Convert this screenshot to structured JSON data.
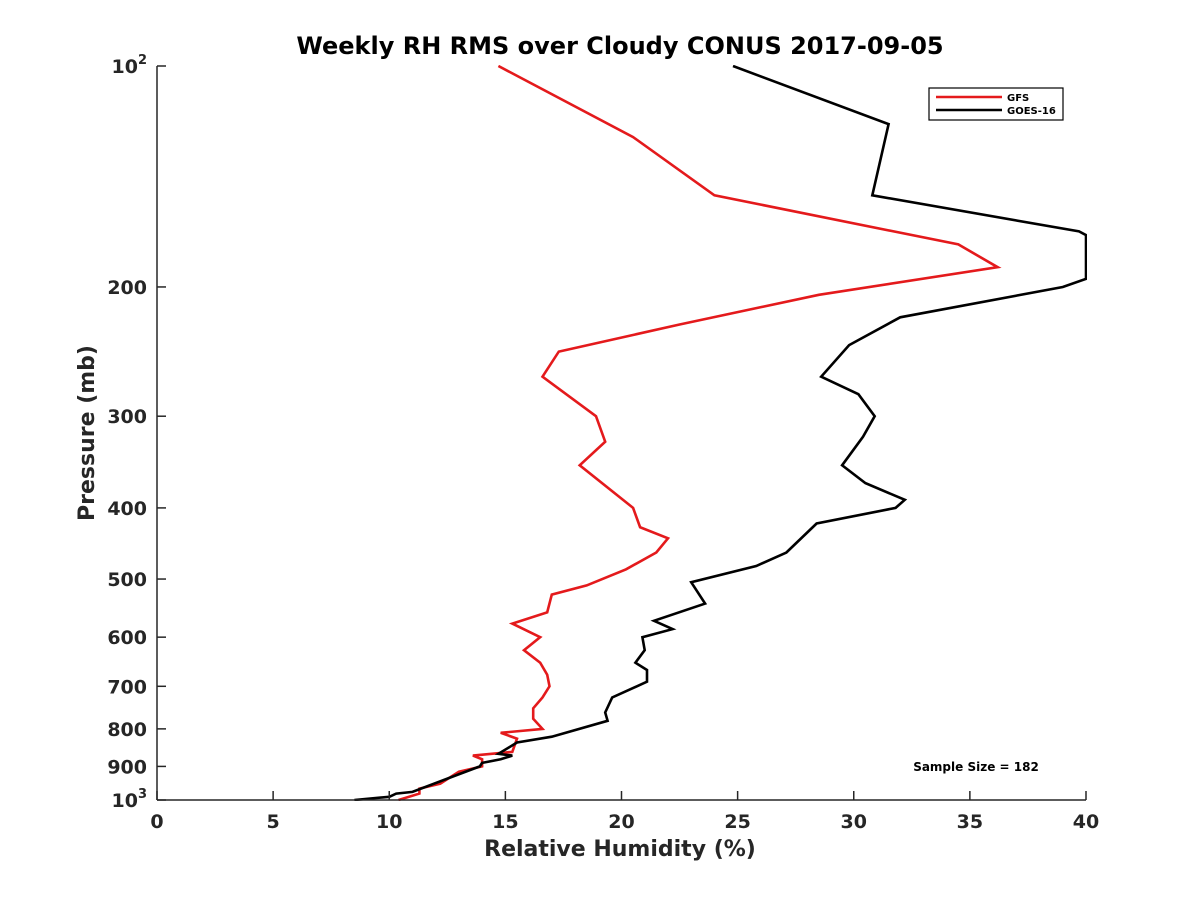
{
  "chart_data": {
    "type": "line",
    "title": "Weekly RH RMS over Cloudy CONUS 2017-09-05",
    "xlabel": "Relative Humidity (%)",
    "ylabel": "Pressure (mb)",
    "xlim": [
      0,
      40
    ],
    "ylim": [
      100,
      1000
    ],
    "y_scale": "log",
    "y_reversed": true,
    "x_ticks": [
      "0",
      "5",
      "10",
      "15",
      "20",
      "25",
      "30",
      "35",
      "40"
    ],
    "y_ticks": [
      {
        "value": 100,
        "base": "10",
        "exp": "2"
      },
      {
        "value": 200,
        "label": "200"
      },
      {
        "value": 300,
        "label": "300"
      },
      {
        "value": 400,
        "label": "400"
      },
      {
        "value": 500,
        "label": "500"
      },
      {
        "value": 600,
        "label": "600"
      },
      {
        "value": 700,
        "label": "700"
      },
      {
        "value": 800,
        "label": "800"
      },
      {
        "value": 900,
        "label": "900"
      },
      {
        "value": 1000,
        "base": "10",
        "exp": "3"
      }
    ],
    "grid": false,
    "legend_position": "top-right",
    "annotation": "Sample Size = 182",
    "series": [
      {
        "name": "GFS",
        "color": "#e41a1c",
        "points": [
          [
            14.7,
            100
          ],
          [
            20.5,
            125
          ],
          [
            24.0,
            150
          ],
          [
            34.5,
            175
          ],
          [
            36.2,
            188
          ],
          [
            28.5,
            205
          ],
          [
            22.5,
            225
          ],
          [
            17.3,
            245
          ],
          [
            16.6,
            265
          ],
          [
            18.9,
            300
          ],
          [
            19.3,
            325
          ],
          [
            18.2,
            350
          ],
          [
            20.5,
            400
          ],
          [
            20.8,
            425
          ],
          [
            22.0,
            440
          ],
          [
            21.5,
            460
          ],
          [
            20.2,
            485
          ],
          [
            18.5,
            510
          ],
          [
            17.0,
            525
          ],
          [
            16.8,
            555
          ],
          [
            15.3,
            575
          ],
          [
            16.5,
            600
          ],
          [
            15.8,
            625
          ],
          [
            16.5,
            650
          ],
          [
            16.8,
            675
          ],
          [
            16.9,
            700
          ],
          [
            16.6,
            725
          ],
          [
            16.2,
            750
          ],
          [
            16.2,
            775
          ],
          [
            16.6,
            800
          ],
          [
            14.8,
            810
          ],
          [
            15.5,
            825
          ],
          [
            15.3,
            860
          ],
          [
            13.6,
            870
          ],
          [
            14.0,
            880
          ],
          [
            14.0,
            900
          ],
          [
            13.0,
            915
          ],
          [
            12.2,
            950
          ],
          [
            11.3,
            965
          ],
          [
            11.3,
            980
          ],
          [
            10.4,
            1000
          ]
        ]
      },
      {
        "name": "GOES-16",
        "color": "#000000",
        "points": [
          [
            24.8,
            100
          ],
          [
            31.5,
            120
          ],
          [
            30.8,
            150
          ],
          [
            39.7,
            168
          ],
          [
            40.0,
            170
          ],
          [
            40.0,
            195
          ],
          [
            39.0,
            200
          ],
          [
            32.0,
            220
          ],
          [
            29.8,
            240
          ],
          [
            28.6,
            265
          ],
          [
            30.2,
            280
          ],
          [
            30.9,
            300
          ],
          [
            30.4,
            320
          ],
          [
            29.5,
            350
          ],
          [
            30.5,
            370
          ],
          [
            32.2,
            390
          ],
          [
            31.8,
            400
          ],
          [
            28.4,
            420
          ],
          [
            27.1,
            460
          ],
          [
            25.8,
            480
          ],
          [
            23.0,
            505
          ],
          [
            23.6,
            540
          ],
          [
            21.4,
            570
          ],
          [
            22.2,
            585
          ],
          [
            20.9,
            600
          ],
          [
            21.0,
            625
          ],
          [
            20.6,
            650
          ],
          [
            21.1,
            665
          ],
          [
            21.1,
            690
          ],
          [
            19.6,
            725
          ],
          [
            19.3,
            760
          ],
          [
            19.4,
            780
          ],
          [
            17.0,
            820
          ],
          [
            15.5,
            835
          ],
          [
            14.7,
            865
          ],
          [
            15.3,
            870
          ],
          [
            14.8,
            880
          ],
          [
            14.0,
            890
          ],
          [
            13.9,
            900
          ],
          [
            12.9,
            925
          ],
          [
            11.0,
            975
          ],
          [
            10.3,
            980
          ],
          [
            10.0,
            990
          ],
          [
            8.5,
            1000
          ]
        ]
      }
    ]
  }
}
